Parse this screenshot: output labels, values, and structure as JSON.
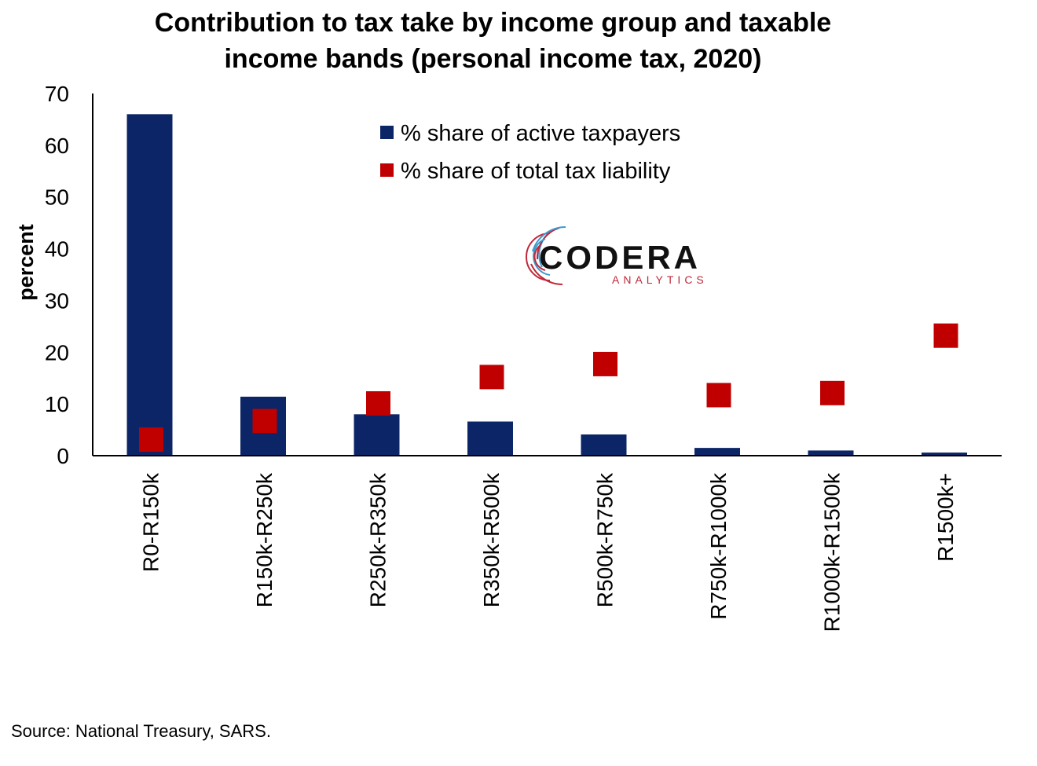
{
  "chart_data": {
    "type": "bar",
    "title": "Contribution to tax take by income group and taxable income bands (personal income tax, 2020)",
    "title_lines": [
      "Contribution to tax take by income group and taxable",
      "income bands (personal income tax, 2020)"
    ],
    "xlabel": "",
    "ylabel": "percent",
    "ylim": [
      0,
      70
    ],
    "yticks": [
      0,
      10,
      20,
      30,
      40,
      50,
      60,
      70
    ],
    "categories": [
      "R0-R150k",
      "R150k-R250k",
      "R250k-R350k",
      "R350k-R500k",
      "R500k-R750k",
      "R750k-R1000k",
      "R1000k-R1500k",
      "R1500k+"
    ],
    "series": [
      {
        "name": "% share of active taxpayers",
        "kind": "bar",
        "color": "#0b2566",
        "values": [
          66.0,
          11.4,
          8.0,
          6.6,
          4.1,
          1.5,
          1.0,
          0.6
        ]
      },
      {
        "name": "% share of total tax liability",
        "kind": "marker",
        "color": "#c00000",
        "values": [
          3.1,
          6.7,
          10.1,
          15.2,
          17.7,
          11.7,
          12.1,
          23.2
        ]
      }
    ],
    "legend_position": "top-center",
    "grid": false
  },
  "logo": {
    "word": "CODERA",
    "sub": "ANALYTICS"
  },
  "source": "Source: National Treasury, SARS."
}
